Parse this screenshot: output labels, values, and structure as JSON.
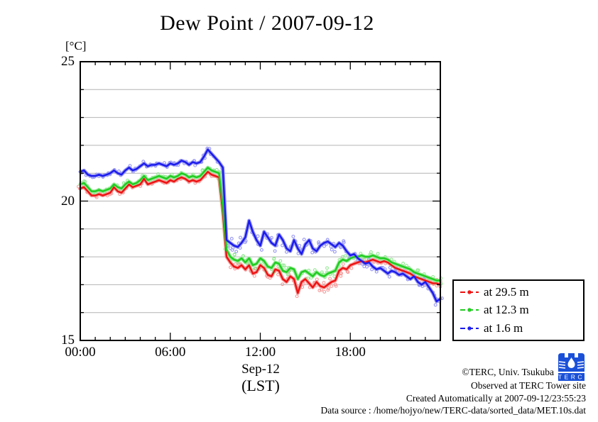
{
  "title": "Dew Point / 2007-09-12",
  "chart_data": {
    "type": "line",
    "title": "Dew Point / 2007-09-12",
    "unit_label": "[°C]",
    "xlabel_line1": "Sep-12",
    "xlabel_line2": "(LST)",
    "grid": "horizontal-only",
    "legend_position": "outside-right-bottom",
    "x_axis": {
      "min": 0,
      "max": 24,
      "minor_step_hours": 1,
      "major_ticks_hours": [
        0,
        6,
        12,
        18,
        24
      ],
      "tick_labels": [
        {
          "hour": 0,
          "label": "00:00"
        },
        {
          "hour": 6,
          "label": "06:00"
        },
        {
          "hour": 12,
          "label": "12:00"
        },
        {
          "hour": 18,
          "label": "18:00"
        }
      ]
    },
    "y_axis": {
      "min": 15,
      "max": 25,
      "minor_step": 1,
      "major_ticks": [
        15,
        20,
        25
      ],
      "tick_labels": [
        {
          "value": 25,
          "label": "25"
        },
        {
          "value": 20,
          "label": "20"
        },
        {
          "value": 15,
          "label": "15"
        }
      ]
    },
    "x_start_hour": 0,
    "x_step_hours": 0.25,
    "series": [
      {
        "name": "at 29.5 m",
        "color": "#ee1111",
        "light_color": "#f79a9a",
        "values": [
          20.45,
          20.5,
          20.35,
          20.2,
          20.2,
          20.25,
          20.2,
          20.25,
          20.3,
          20.5,
          20.35,
          20.3,
          20.45,
          20.6,
          20.5,
          20.55,
          20.6,
          20.8,
          20.6,
          20.65,
          20.7,
          20.75,
          20.7,
          20.65,
          20.75,
          20.7,
          20.8,
          20.85,
          20.8,
          20.7,
          20.75,
          20.7,
          20.75,
          20.9,
          21.05,
          20.95,
          20.9,
          20.85,
          19.6,
          18.0,
          17.8,
          17.65,
          17.6,
          17.7,
          17.55,
          17.7,
          17.4,
          17.45,
          17.7,
          17.6,
          17.35,
          17.3,
          17.55,
          17.5,
          17.2,
          17.1,
          17.3,
          17.2,
          16.7,
          17.1,
          17.2,
          17.05,
          16.9,
          17.1,
          16.95,
          16.9,
          17.0,
          17.1,
          17.15,
          17.5,
          17.6,
          17.55,
          17.7,
          17.75,
          17.8,
          17.85,
          17.8,
          17.85,
          17.9,
          17.85,
          17.8,
          17.85,
          17.8,
          17.7,
          17.6,
          17.55,
          17.5,
          17.45,
          17.4,
          17.3,
          17.25,
          17.2,
          17.15,
          17.1,
          17.05,
          17.05,
          17.0
        ]
      },
      {
        "name": "at 12.3 m",
        "color": "#1fcc1f",
        "light_color": "#93e893",
        "values": [
          20.6,
          20.65,
          20.5,
          20.35,
          20.35,
          20.4,
          20.35,
          20.4,
          20.45,
          20.6,
          20.5,
          20.45,
          20.6,
          20.7,
          20.6,
          20.65,
          20.75,
          20.9,
          20.75,
          20.8,
          20.85,
          20.9,
          20.85,
          20.8,
          20.9,
          20.85,
          20.9,
          21.0,
          20.95,
          20.85,
          20.9,
          20.85,
          20.9,
          21.05,
          21.2,
          21.1,
          21.05,
          21.0,
          19.8,
          18.25,
          18.0,
          17.9,
          17.85,
          17.95,
          17.8,
          17.95,
          17.7,
          17.75,
          17.95,
          17.85,
          17.65,
          17.6,
          17.8,
          17.75,
          17.5,
          17.45,
          17.6,
          17.55,
          17.2,
          17.45,
          17.5,
          17.4,
          17.3,
          17.45,
          17.35,
          17.3,
          17.4,
          17.45,
          17.5,
          17.8,
          17.9,
          17.85,
          17.95,
          18.0,
          18.0,
          18.05,
          18.0,
          18.0,
          18.05,
          18.0,
          17.95,
          17.95,
          17.9,
          17.8,
          17.75,
          17.7,
          17.65,
          17.6,
          17.55,
          17.45,
          17.4,
          17.35,
          17.3,
          17.25,
          17.2,
          17.15,
          17.15
        ]
      },
      {
        "name": "at 1.6 m",
        "color": "#1a1aee",
        "light_color": "#9595f2",
        "values": [
          21.05,
          21.1,
          20.95,
          20.9,
          20.9,
          20.95,
          20.9,
          20.95,
          21.0,
          21.1,
          21.0,
          20.95,
          21.1,
          21.2,
          21.1,
          21.15,
          21.25,
          21.35,
          21.25,
          21.3,
          21.3,
          21.35,
          21.3,
          21.25,
          21.35,
          21.3,
          21.35,
          21.45,
          21.4,
          21.3,
          21.4,
          21.35,
          21.4,
          21.6,
          21.85,
          21.7,
          21.55,
          21.4,
          21.2,
          18.6,
          18.5,
          18.4,
          18.35,
          18.5,
          18.7,
          19.3,
          18.9,
          18.6,
          18.4,
          18.9,
          18.7,
          18.5,
          18.4,
          18.8,
          18.6,
          18.3,
          18.2,
          18.6,
          18.3,
          18.1,
          18.45,
          18.6,
          18.3,
          18.2,
          18.4,
          18.5,
          18.55,
          18.45,
          18.35,
          18.5,
          18.4,
          18.2,
          18.05,
          18.1,
          17.95,
          17.85,
          17.75,
          17.8,
          17.65,
          17.55,
          17.6,
          17.5,
          17.4,
          17.5,
          17.45,
          17.35,
          17.4,
          17.3,
          17.2,
          17.3,
          17.1,
          17.0,
          17.1,
          16.9,
          16.7,
          16.4,
          16.5
        ]
      }
    ]
  },
  "footer": {
    "copyright": "©TERC, Univ. Tsukuba",
    "observed": "Observed at TERC Tower site",
    "created": "Created Automatically at 2007-09-12/23:55:23",
    "data_source": "Data source : /home/hojyo/new/TERC-data/sorted_data/MET.10s.dat"
  },
  "logo": {
    "text": "TERC"
  }
}
